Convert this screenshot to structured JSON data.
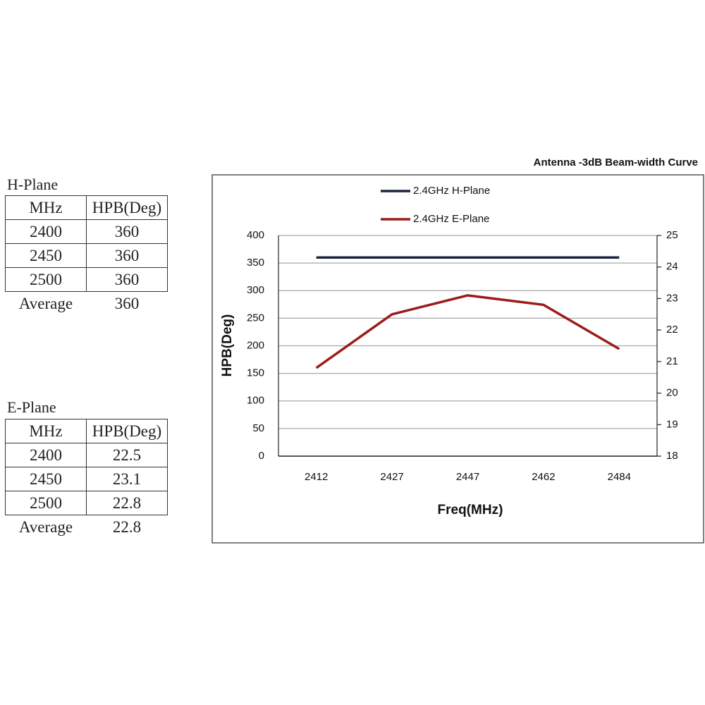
{
  "tables": [
    {
      "title": "H-Plane",
      "header": [
        "MHz",
        "HPB(Deg)"
      ],
      "rows": [
        [
          "2400",
          "360"
        ],
        [
          "2450",
          "360"
        ],
        [
          "2500",
          "360"
        ]
      ],
      "average": [
        "Average",
        "360"
      ]
    },
    {
      "title": "E-Plane",
      "header": [
        "MHz",
        "HPB(Deg)"
      ],
      "rows": [
        [
          "2400",
          "22.5"
        ],
        [
          "2450",
          "23.1"
        ],
        [
          "2500",
          "22.8"
        ]
      ],
      "average": [
        "Average",
        "22.8"
      ]
    }
  ],
  "chart_data": {
    "type": "line",
    "title": "Antenna -3dB Beam-width Curve",
    "x_label": "Freq(MHz)",
    "y_label": "HPB(Deg)",
    "categories": [
      "2412",
      "2427",
      "2447",
      "2462",
      "2484"
    ],
    "series": [
      {
        "name": "2.4GHz H-Plane",
        "color": "#1c2541",
        "values": [
          360,
          360,
          360,
          360,
          360
        ]
      },
      {
        "name": "2.4GHz E-Plane",
        "color": "#9b1c1c",
        "axis": "y2",
        "values": [
          20.8,
          22.5,
          23.1,
          22.8,
          21.4
        ]
      }
    ],
    "ylim": [
      0,
      400
    ],
    "yticks": [
      0,
      50,
      100,
      150,
      200,
      250,
      300,
      350,
      400
    ],
    "y2lim": [
      18,
      25
    ],
    "y2ticks": [
      18,
      19,
      20,
      21,
      22,
      23,
      24,
      25
    ],
    "grid": true,
    "legend": "top"
  }
}
